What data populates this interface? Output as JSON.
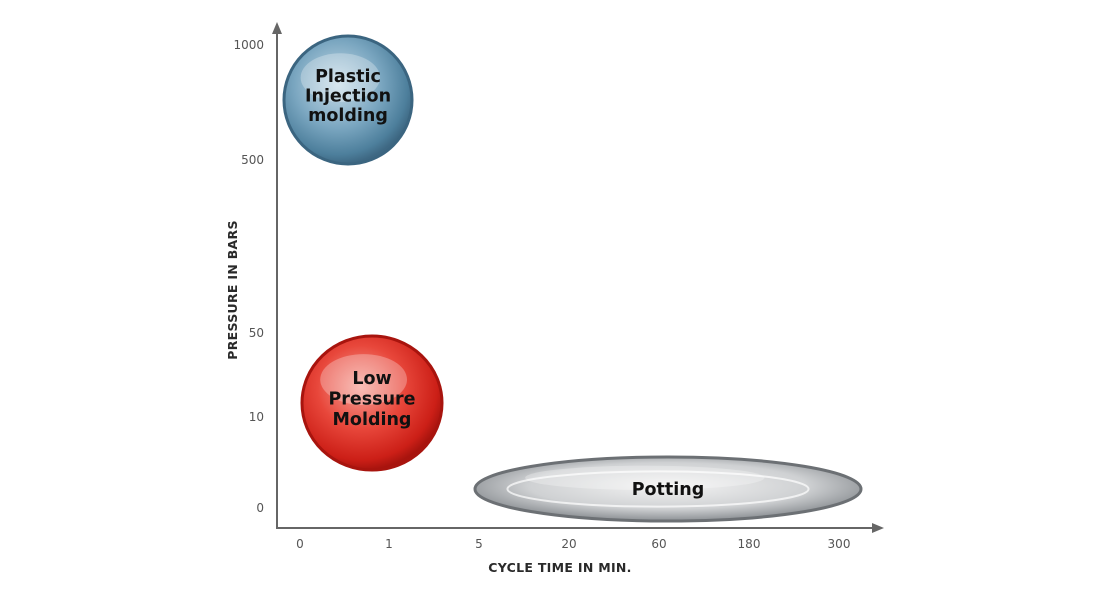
{
  "chart_data": {
    "type": "scatter",
    "xlabel": "CYCLE TIME IN MIN.",
    "ylabel": "PRESSURE IN BARS",
    "x_ticks": [
      "0",
      "1",
      "5",
      "20",
      "60",
      "180",
      "300"
    ],
    "y_ticks": [
      "0",
      "10",
      "50",
      "500",
      "1000"
    ],
    "bubbles": [
      {
        "label": [
          "Plastic",
          "Injection",
          "molding"
        ],
        "color": "#4f86a3",
        "x_range": [
          "0",
          "1"
        ],
        "y_range": [
          "500",
          "1000"
        ]
      },
      {
        "label": [
          "Low",
          "Pressure",
          "Molding"
        ],
        "color": "#d9261c",
        "x_range": [
          "0",
          "1"
        ],
        "y_range": [
          "10",
          "50"
        ]
      },
      {
        "label": [
          "Potting"
        ],
        "color": "#9a9ea3",
        "x_range": [
          "5",
          "300"
        ],
        "y_range": [
          "0",
          "0"
        ]
      }
    ]
  }
}
